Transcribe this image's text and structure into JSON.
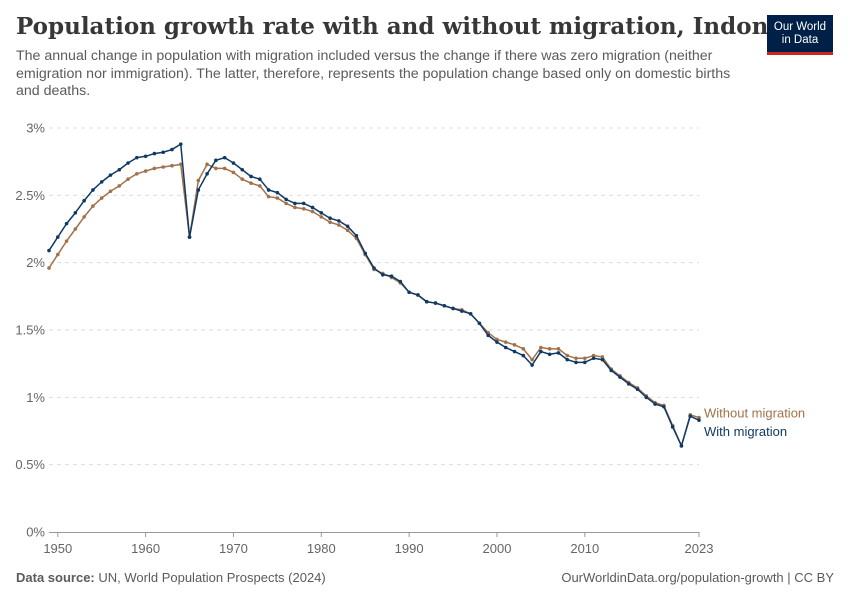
{
  "header": {
    "title": "Population growth rate with and without migration, Indonesia",
    "subtitle": "The annual change in population with migration included versus the change if there was zero migration (neither emigration nor immigration). The latter, therefore, represents the population change based only on domestic births and deaths."
  },
  "logo": {
    "line1": "Our World",
    "line2": "in Data"
  },
  "footer": {
    "source_label": "Data source:",
    "source_text": "UN, World Population Prospects (2024)",
    "url_text": "OurWorldinData.org/population-growth | CC BY"
  },
  "chart_data": {
    "type": "line",
    "xlim": [
      1949,
      2023
    ],
    "ylim": [
      0,
      3
    ],
    "y_ticks": [
      0,
      0.5,
      1,
      1.5,
      2,
      2.5,
      3
    ],
    "y_tick_labels": [
      "0%",
      "0.5%",
      "1%",
      "1.5%",
      "2%",
      "2.5%",
      "3%"
    ],
    "x_ticks": [
      1950,
      1960,
      1970,
      1980,
      1990,
      2000,
      2010,
      2023
    ],
    "x_tick_labels": [
      "1950",
      "1960",
      "1970",
      "1980",
      "1990",
      "2000",
      "2010",
      "2023"
    ],
    "grid": "horizontal-dashed",
    "x": [
      1949,
      1950,
      1951,
      1952,
      1953,
      1954,
      1955,
      1956,
      1957,
      1958,
      1959,
      1960,
      1961,
      1962,
      1963,
      1964,
      1965,
      1966,
      1967,
      1968,
      1969,
      1970,
      1971,
      1972,
      1973,
      1974,
      1975,
      1976,
      1977,
      1978,
      1979,
      1980,
      1981,
      1982,
      1983,
      1984,
      1985,
      1986,
      1987,
      1988,
      1989,
      1990,
      1991,
      1992,
      1993,
      1994,
      1995,
      1996,
      1997,
      1998,
      1999,
      2000,
      2001,
      2002,
      2003,
      2004,
      2005,
      2006,
      2007,
      2008,
      2009,
      2010,
      2011,
      2012,
      2013,
      2014,
      2015,
      2016,
      2017,
      2018,
      2019,
      2020,
      2021,
      2022,
      2023
    ],
    "series": [
      {
        "name": "Without migration",
        "color": "#a2714a",
        "values": [
          1.96,
          2.06,
          2.16,
          2.25,
          2.34,
          2.42,
          2.48,
          2.53,
          2.57,
          2.62,
          2.66,
          2.68,
          2.7,
          2.71,
          2.72,
          2.73,
          2.19,
          2.61,
          2.73,
          2.7,
          2.7,
          2.67,
          2.62,
          2.59,
          2.57,
          2.49,
          2.48,
          2.44,
          2.41,
          2.4,
          2.38,
          2.34,
          2.3,
          2.28,
          2.24,
          2.18,
          2.06,
          1.95,
          1.92,
          1.89,
          1.85,
          1.78,
          1.76,
          1.71,
          1.7,
          1.68,
          1.66,
          1.65,
          1.62,
          1.55,
          1.48,
          1.43,
          1.41,
          1.39,
          1.36,
          1.28,
          1.37,
          1.36,
          1.36,
          1.31,
          1.29,
          1.29,
          1.31,
          1.3,
          1.21,
          1.16,
          1.11,
          1.07,
          1.01,
          0.96,
          0.94,
          0.79,
          0.64,
          0.87,
          0.85
        ]
      },
      {
        "name": "With migration",
        "color": "#0f3a66",
        "values": [
          2.09,
          2.19,
          2.29,
          2.37,
          2.46,
          2.54,
          2.6,
          2.65,
          2.69,
          2.74,
          2.78,
          2.79,
          2.81,
          2.82,
          2.84,
          2.88,
          2.19,
          2.54,
          2.66,
          2.76,
          2.78,
          2.74,
          2.69,
          2.64,
          2.62,
          2.54,
          2.52,
          2.47,
          2.44,
          2.44,
          2.41,
          2.37,
          2.33,
          2.31,
          2.27,
          2.2,
          2.07,
          1.96,
          1.91,
          1.9,
          1.86,
          1.78,
          1.76,
          1.71,
          1.7,
          1.68,
          1.66,
          1.64,
          1.62,
          1.55,
          1.46,
          1.41,
          1.37,
          1.34,
          1.31,
          1.24,
          1.34,
          1.32,
          1.33,
          1.28,
          1.26,
          1.26,
          1.29,
          1.28,
          1.2,
          1.15,
          1.1,
          1.06,
          1.0,
          0.95,
          0.93,
          0.78,
          0.64,
          0.86,
          0.83
        ]
      }
    ]
  }
}
